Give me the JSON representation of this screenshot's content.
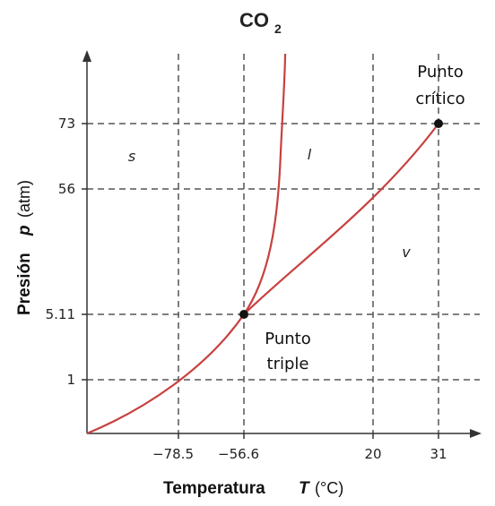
{
  "title": {
    "main": "CO",
    "sub": "2"
  },
  "x_axis": {
    "title": "Temperatura",
    "symbol": "T",
    "unit": "(°C)",
    "ticks": [
      "−78.5",
      "−56.6",
      "20",
      "31"
    ]
  },
  "y_axis": {
    "title": "Presión",
    "symbol": "p",
    "unit": "(atm)",
    "ticks": [
      "73",
      "56",
      "5.11",
      "1"
    ]
  },
  "regions": {
    "solid": "s",
    "liquid": "l",
    "vapor": "v"
  },
  "points": {
    "critical": {
      "line1": "Punto",
      "line2": "crítico"
    },
    "triple": {
      "line1": "Punto",
      "line2": "triple"
    }
  },
  "colors": {
    "curve": "#c8413f",
    "grid": "#555555",
    "axis": "#333333"
  }
}
